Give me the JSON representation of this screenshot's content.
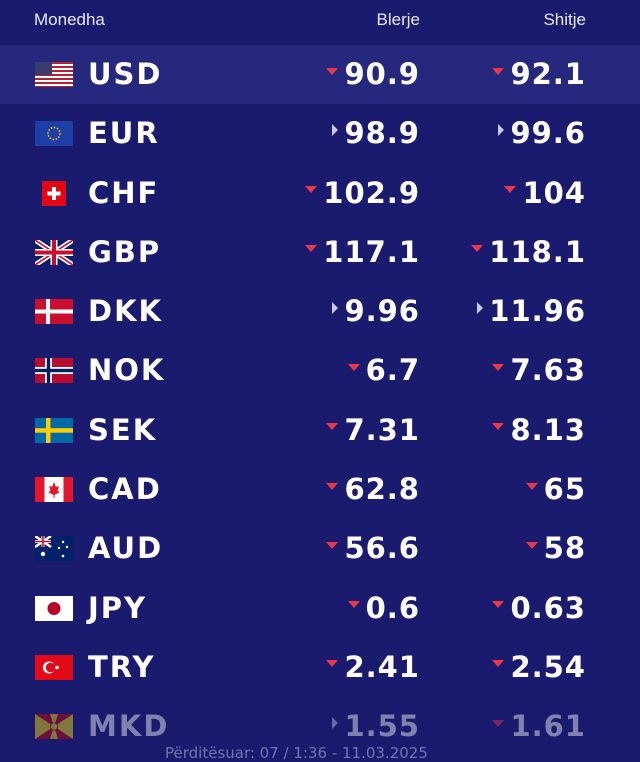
{
  "header": {
    "currency": "Monedha",
    "buy": "Blerje",
    "sell": "Shitje"
  },
  "colors": {
    "background": "#1a1a6e",
    "highlight": "#26287e",
    "down": "#e8384a",
    "neutral": "#c9c9e6"
  },
  "rows": [
    {
      "code": "USD",
      "flag": "us-flag-icon",
      "buy": "90.9",
      "buy_trend": "down",
      "sell": "92.1",
      "sell_trend": "down"
    },
    {
      "code": "EUR",
      "flag": "eu-flag-icon",
      "buy": "98.9",
      "buy_trend": "neutral",
      "sell": "99.6",
      "sell_trend": "neutral"
    },
    {
      "code": "CHF",
      "flag": "ch-flag-icon",
      "buy": "102.9",
      "buy_trend": "down",
      "sell": "104",
      "sell_trend": "down"
    },
    {
      "code": "GBP",
      "flag": "gb-flag-icon",
      "buy": "117.1",
      "buy_trend": "down",
      "sell": "118.1",
      "sell_trend": "down"
    },
    {
      "code": "DKK",
      "flag": "dk-flag-icon",
      "buy": "9.96",
      "buy_trend": "neutral",
      "sell": "11.96",
      "sell_trend": "neutral"
    },
    {
      "code": "NOK",
      "flag": "no-flag-icon",
      "buy": "6.7",
      "buy_trend": "down",
      "sell": "7.63",
      "sell_trend": "down"
    },
    {
      "code": "SEK",
      "flag": "se-flag-icon",
      "buy": "7.31",
      "buy_trend": "down",
      "sell": "8.13",
      "sell_trend": "down"
    },
    {
      "code": "CAD",
      "flag": "ca-flag-icon",
      "buy": "62.8",
      "buy_trend": "down",
      "sell": "65",
      "sell_trend": "down"
    },
    {
      "code": "AUD",
      "flag": "au-flag-icon",
      "buy": "56.6",
      "buy_trend": "down",
      "sell": "58",
      "sell_trend": "down"
    },
    {
      "code": "JPY",
      "flag": "jp-flag-icon",
      "buy": "0.6",
      "buy_trend": "down",
      "sell": "0.63",
      "sell_trend": "down"
    },
    {
      "code": "TRY",
      "flag": "tr-flag-icon",
      "buy": "2.41",
      "buy_trend": "down",
      "sell": "2.54",
      "sell_trend": "down"
    },
    {
      "code": "MKD",
      "flag": "mk-flag-icon",
      "buy": "1.55",
      "buy_trend": "neutral",
      "sell": "1.61",
      "sell_trend": "down"
    }
  ],
  "footer": "Përditësuar: 07 / 1:36 - 11.03.2025"
}
